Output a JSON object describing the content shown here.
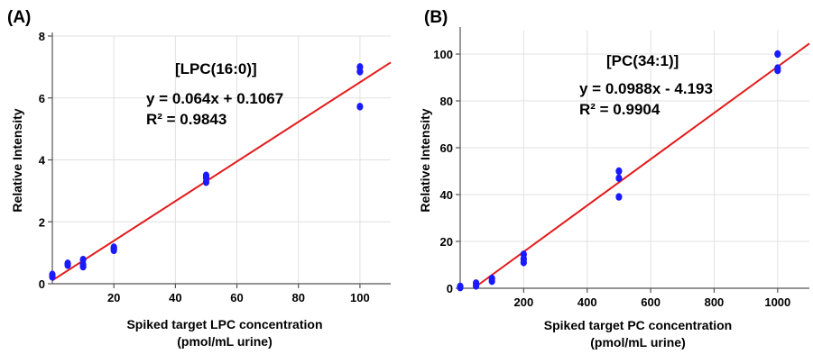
{
  "chart_data": [
    {
      "type": "scatter",
      "panel_label": "(A)",
      "title": "[LPC(16:0)]",
      "equation": "y = 0.064x + 0.1067",
      "r_squared": "R² = 0.9843",
      "xlabel": "Spiked target LPC concentration",
      "xlabel_unit": "(pmol/mL urine)",
      "ylabel": "Relative Intensity",
      "xlim": [
        0,
        110
      ],
      "ylim": [
        0,
        8
      ],
      "xticks": [
        20,
        40,
        60,
        80,
        100
      ],
      "yticks": [
        0,
        2,
        4,
        6,
        8
      ],
      "grid": true,
      "point_color": "#1a1aff",
      "line_color": "#e41a1a",
      "trendline": {
        "slope": 0.064,
        "intercept": 0.1067
      },
      "points": [
        {
          "x": 0,
          "y": 0.22
        },
        {
          "x": 0,
          "y": 0.3
        },
        {
          "x": 5,
          "y": 0.6
        },
        {
          "x": 5,
          "y": 0.66
        },
        {
          "x": 10,
          "y": 0.55
        },
        {
          "x": 10,
          "y": 0.62
        },
        {
          "x": 10,
          "y": 0.78
        },
        {
          "x": 20,
          "y": 1.08
        },
        {
          "x": 20,
          "y": 1.13
        },
        {
          "x": 20,
          "y": 1.18
        },
        {
          "x": 50,
          "y": 3.28
        },
        {
          "x": 50,
          "y": 3.42
        },
        {
          "x": 50,
          "y": 3.5
        },
        {
          "x": 100,
          "y": 5.72
        },
        {
          "x": 100,
          "y": 6.85
        },
        {
          "x": 100,
          "y": 7.0
        }
      ]
    },
    {
      "type": "scatter",
      "panel_label": "(B)",
      "title": "[PC(34:1)]",
      "equation": "y = 0.0988x - 4.193",
      "r_squared": "R² = 0.9904",
      "xlabel": "Spiked target PC concentration",
      "xlabel_unit": "(pmol/mL urine)",
      "ylabel": "Relative Intensity",
      "xlim": [
        0,
        1100
      ],
      "ylim": [
        0,
        110
      ],
      "xticks": [
        200,
        400,
        600,
        800,
        1000
      ],
      "yticks": [
        0,
        20,
        40,
        60,
        80,
        100
      ],
      "grid": true,
      "point_color": "#1a1aff",
      "line_color": "#e41a1a",
      "trendline": {
        "slope": 0.0988,
        "intercept": -4.193
      },
      "points": [
        {
          "x": 0,
          "y": 0.3
        },
        {
          "x": 0,
          "y": 0.8
        },
        {
          "x": 50,
          "y": 1.0
        },
        {
          "x": 50,
          "y": 2.2
        },
        {
          "x": 100,
          "y": 3.0
        },
        {
          "x": 100,
          "y": 4.2
        },
        {
          "x": 200,
          "y": 11.0
        },
        {
          "x": 200,
          "y": 12.5
        },
        {
          "x": 200,
          "y": 14.5
        },
        {
          "x": 500,
          "y": 39.0
        },
        {
          "x": 500,
          "y": 47.0
        },
        {
          "x": 500,
          "y": 50.0
        },
        {
          "x": 1000,
          "y": 93.0
        },
        {
          "x": 1000,
          "y": 94.0
        },
        {
          "x": 1000,
          "y": 100.0
        }
      ]
    }
  ]
}
